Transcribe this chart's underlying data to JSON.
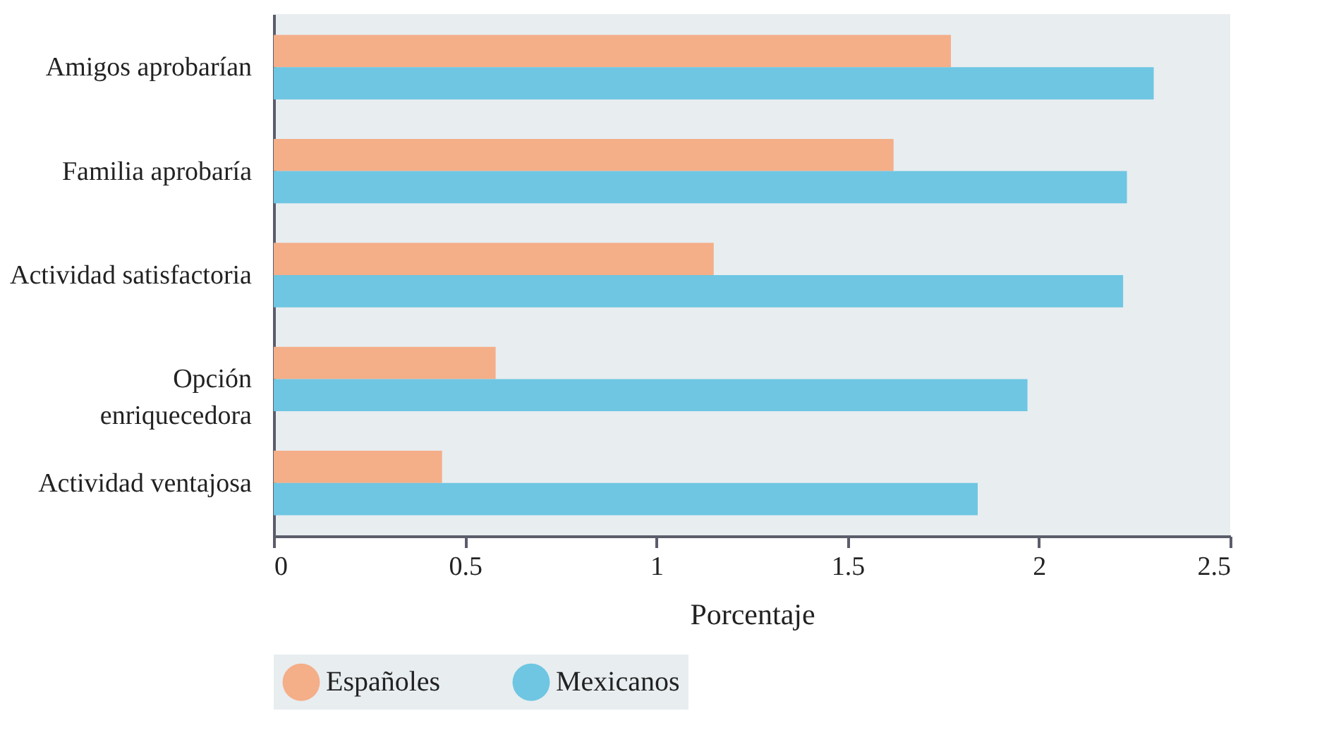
{
  "chart_data": {
    "type": "bar",
    "orientation": "horizontal",
    "xlabel": "Porcentaje",
    "categories": [
      "Amigos aprobarían",
      "Familia aprobaría",
      "Actividad satisfactoria",
      "Opción\nenriquecedora",
      "Actividad ventajosa"
    ],
    "series": [
      {
        "name": "Españoles",
        "color": "#f4ae88",
        "values": [
          1.77,
          1.62,
          1.15,
          0.58,
          0.44
        ]
      },
      {
        "name": "Mexicanos",
        "color": "#6ec6e2",
        "values": [
          2.3,
          2.23,
          2.22,
          1.97,
          1.84
        ]
      }
    ],
    "xlim": [
      0,
      2.5
    ],
    "xticks": [
      0,
      0.5,
      1,
      1.5,
      2,
      2.5
    ],
    "grid": false,
    "legend": "bottom"
  }
}
